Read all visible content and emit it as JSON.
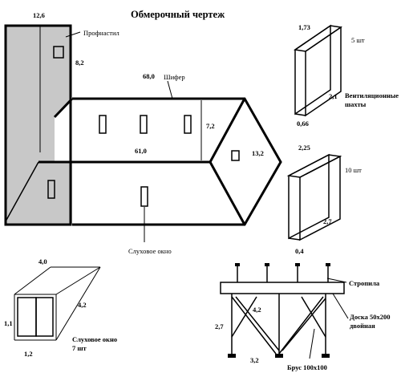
{
  "title": "Обмерочный чертеж",
  "main_building": {
    "top_width": "12,6",
    "side_height": "8,2",
    "material_label": "Профнастил"
  },
  "roof": {
    "ridge_length": "68,0",
    "bottom_length": "61,0",
    "slope_height": "7,2",
    "end_width": "13,2",
    "material_label": "Шифер",
    "dormer_label": "Слуховое окно"
  },
  "vent_shaft": {
    "height": "1,73",
    "count": "5 шт",
    "length": "2,1",
    "depth": "0,66",
    "label_line1": "Вентиляционные",
    "label_line2": "шахты"
  },
  "block_two": {
    "height": "2,25",
    "count": "10 шт",
    "length": "2,7",
    "depth": "0,4"
  },
  "dormer_window": {
    "length": "4,0",
    "height": "1,1",
    "diagonal": "4,2",
    "width": "1,2",
    "label_line1": "Слуховое окно",
    "label_line2": "7 шт"
  },
  "truss": {
    "rafter_label": "Стропила",
    "board_label_line1": "Доска 50х200",
    "board_label_line2": "двойная",
    "beam_label": "Брус 100х100",
    "height": "2,7",
    "diagonal": "4,2",
    "base_width": "3,2"
  }
}
